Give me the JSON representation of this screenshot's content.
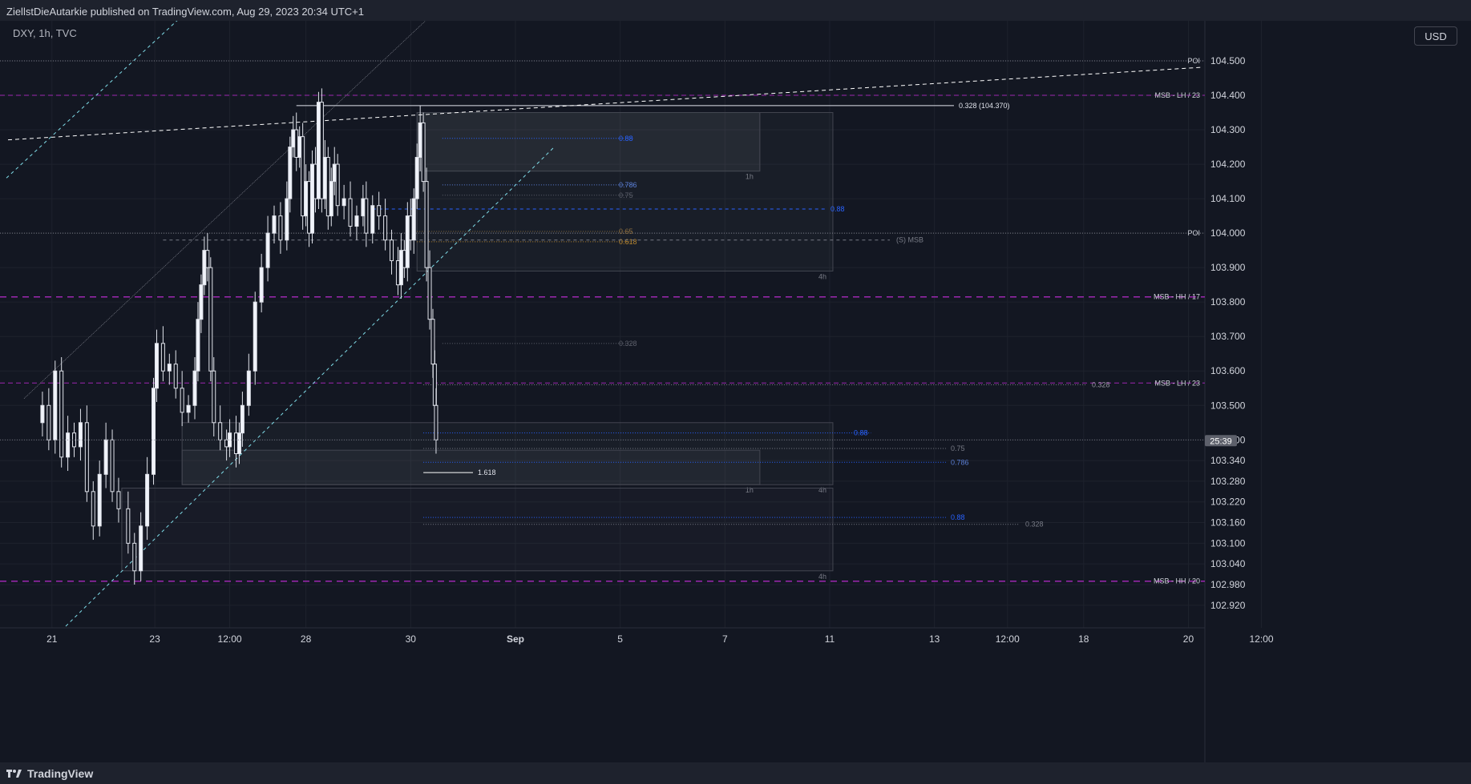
{
  "publisher_line": "ZiellstDieAutarkie published on TradingView.com, Aug 29, 2023 20:34 UTC+1",
  "symbol_line": "DXY, 1h, TVC",
  "currency_button": "USD",
  "footer_brand": "TradingView",
  "countdown_badge": "25:39",
  "colors": {
    "background": "#131722",
    "grid": "#1e222d",
    "candle": "#e0e3eb",
    "purple_level": "#9c27b0",
    "blue_fib": "#2962ff",
    "cyan_trend": "#80deea",
    "white_trend": "#ffffff"
  },
  "chart_data": {
    "type": "candlestick",
    "title": "",
    "ylim": [
      102.86,
      104.56
    ],
    "y_ticks": [
      "104.500",
      "104.400",
      "104.300",
      "104.200",
      "104.100",
      "104.000",
      "103.900",
      "103.800",
      "103.700",
      "103.600",
      "103.500",
      "103.400",
      "103.340",
      "103.280",
      "103.220",
      "103.160",
      "103.100",
      "103.040",
      "102.980",
      "102.920"
    ],
    "x_ticks": [
      {
        "label": "21",
        "t": 0.25
      },
      {
        "label": "23",
        "t": 1.87
      },
      {
        "label": "12:00",
        "t": 3.05
      },
      {
        "label": "28",
        "t": 4.25
      },
      {
        "label": "30",
        "t": 5.9
      },
      {
        "label": "Sep",
        "t": 7.55
      },
      {
        "label": "5",
        "t": 9.2
      },
      {
        "label": "7",
        "t": 10.85
      },
      {
        "label": "11",
        "t": 12.5
      },
      {
        "label": "13",
        "t": 14.15
      },
      {
        "label": "12:00",
        "t": 15.3
      },
      {
        "label": "18",
        "t": 16.5
      },
      {
        "label": "20",
        "t": 18.15
      },
      {
        "label": "12:00",
        "t": 19.3
      }
    ],
    "x_units": "approximate trading-day index along the time axis",
    "price_path": [
      [
        0,
        103.45
      ],
      [
        0.1,
        103.5
      ],
      [
        0.2,
        103.4
      ],
      [
        0.3,
        103.6
      ],
      [
        0.4,
        103.35
      ],
      [
        0.5,
        103.42
      ],
      [
        0.6,
        103.38
      ],
      [
        0.7,
        103.45
      ],
      [
        0.8,
        103.25
      ],
      [
        0.9,
        103.15
      ],
      [
        1.0,
        103.3
      ],
      [
        1.1,
        103.4
      ],
      [
        1.2,
        103.25
      ],
      [
        1.3,
        103.2
      ],
      [
        1.45,
        103.1
      ],
      [
        1.55,
        103.02
      ],
      [
        1.65,
        103.15
      ],
      [
        1.75,
        103.3
      ],
      [
        1.85,
        103.55
      ],
      [
        1.9,
        103.68
      ],
      [
        2.0,
        103.6
      ],
      [
        2.1,
        103.62
      ],
      [
        2.2,
        103.55
      ],
      [
        2.3,
        103.48
      ],
      [
        2.4,
        103.5
      ],
      [
        2.5,
        103.6
      ],
      [
        2.55,
        103.75
      ],
      [
        2.6,
        103.85
      ],
      [
        2.65,
        103.95
      ],
      [
        2.7,
        103.9
      ],
      [
        2.75,
        103.6
      ],
      [
        2.8,
        103.45
      ],
      [
        2.9,
        103.4
      ],
      [
        3.0,
        103.38
      ],
      [
        3.05,
        103.42
      ],
      [
        3.15,
        103.36
      ],
      [
        3.2,
        103.42
      ],
      [
        3.25,
        103.5
      ],
      [
        3.35,
        103.6
      ],
      [
        3.45,
        103.8
      ],
      [
        3.55,
        103.9
      ],
      [
        3.65,
        104.0
      ],
      [
        3.75,
        104.05
      ],
      [
        3.85,
        103.98
      ],
      [
        3.95,
        104.1
      ],
      [
        4.0,
        104.25
      ],
      [
        4.05,
        104.3
      ],
      [
        4.1,
        104.22
      ],
      [
        4.15,
        104.28
      ],
      [
        4.2,
        104.05
      ],
      [
        4.25,
        104.15
      ],
      [
        4.3,
        104.0
      ],
      [
        4.35,
        104.2
      ],
      [
        4.4,
        104.1
      ],
      [
        4.45,
        104.38
      ],
      [
        4.5,
        104.1
      ],
      [
        4.55,
        104.22
      ],
      [
        4.6,
        104.05
      ],
      [
        4.65,
        104.15
      ],
      [
        4.7,
        104.2
      ],
      [
        4.75,
        104.08
      ],
      [
        4.85,
        104.1
      ],
      [
        4.95,
        104.02
      ],
      [
        5.05,
        104.05
      ],
      [
        5.15,
        104.1
      ],
      [
        5.2,
        104.0
      ],
      [
        5.3,
        104.08
      ],
      [
        5.4,
        104.05
      ],
      [
        5.5,
        103.98
      ],
      [
        5.6,
        103.92
      ],
      [
        5.7,
        103.85
      ],
      [
        5.75,
        103.95
      ],
      [
        5.8,
        103.9
      ],
      [
        5.85,
        104.05
      ],
      [
        5.9,
        103.98
      ],
      [
        5.95,
        104.1
      ],
      [
        6.0,
        104.22
      ],
      [
        6.05,
        104.32
      ],
      [
        6.1,
        104.15
      ],
      [
        6.15,
        103.9
      ],
      [
        6.2,
        103.75
      ],
      [
        6.25,
        103.62
      ],
      [
        6.28,
        103.5
      ],
      [
        6.3,
        103.4
      ]
    ],
    "levels": [
      {
        "label": "POI",
        "price": 104.5
      },
      {
        "label": "MSB - LH / 23",
        "price": 104.4
      },
      {
        "label": "POI",
        "price": 104.0
      },
      {
        "label": "MSB - HH / 17",
        "price": 103.815
      },
      {
        "label": "MSB - LH / 23",
        "price": 103.565
      },
      {
        "label": "MSB - HH / 20",
        "price": 102.99
      }
    ],
    "fib_labels": [
      {
        "label": "0.328 (104.370)",
        "price": 104.37
      },
      {
        "label": "0.88",
        "price": 104.275
      },
      {
        "label": "0.786",
        "price": 104.14
      },
      {
        "label": "0.75",
        "price": 104.11
      },
      {
        "label": "0.88",
        "price": 104.07
      },
      {
        "label": "0.65",
        "price": 104.005
      },
      {
        "label": "0.618",
        "price": 103.975
      },
      {
        "label": "(S) MSB",
        "price": 103.98
      },
      {
        "label": "0.328",
        "price": 103.68
      },
      {
        "label": "0.328",
        "price": 103.56
      },
      {
        "label": "0.88",
        "price": 103.42
      },
      {
        "label": "0.75",
        "price": 103.375
      },
      {
        "label": "0.786",
        "price": 103.335
      },
      {
        "label": "1.618",
        "price": 103.305
      },
      {
        "label": "0.88",
        "price": 103.175
      },
      {
        "label": "0.328",
        "price": 103.155
      }
    ],
    "zone_tags": [
      "1h",
      "4h",
      "1h",
      "4h",
      "4h"
    ]
  }
}
